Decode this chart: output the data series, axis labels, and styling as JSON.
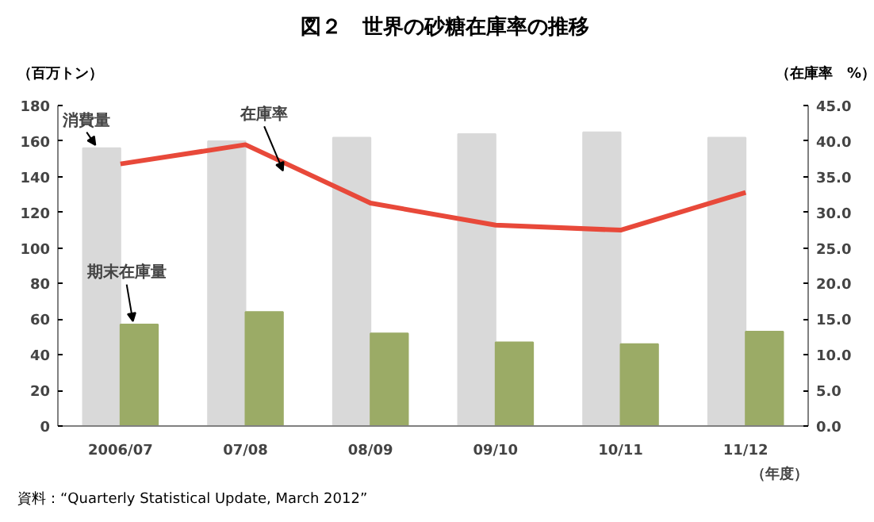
{
  "chart_data": {
    "type": "bar",
    "title": "図２　世界の砂糖在庫率の推移",
    "ylabel": "（百万トン）",
    "y2label": "（在庫率　%）",
    "xlabel": "（年度）",
    "annotations": [
      "資料：“Quarterly Statistical Update, March 2012”"
    ],
    "categories": [
      "2006/07",
      "07/08",
      "08/09",
      "09/10",
      "10/11",
      "11/12"
    ],
    "series": [
      {
        "name": "消費量",
        "color": "#d9d9d9",
        "values": [
          156,
          160,
          162,
          164,
          165,
          162
        ]
      },
      {
        "name": "期末在庫量",
        "color": "#9bab66",
        "values": [
          57,
          64,
          52,
          47,
          46,
          53
        ]
      },
      {
        "name": "在庫率",
        "type": "line",
        "axis": "y2",
        "color": "#e8493a",
        "values": [
          36.8,
          39.5,
          31.3,
          28.2,
          27.5,
          32.8
        ]
      }
    ],
    "ylim": [
      0,
      180
    ],
    "yticks": [
      0,
      20,
      40,
      60,
      80,
      100,
      120,
      140,
      160,
      180
    ],
    "y2lim": [
      0,
      45
    ],
    "y2ticks": [
      {
        "value": 0,
        "label": "0.0"
      },
      {
        "value": 5,
        "label": "5.0"
      },
      {
        "value": 10,
        "label": "10.0"
      },
      {
        "value": 15,
        "label": "15.0"
      },
      {
        "value": 20,
        "label": "20.0"
      },
      {
        "value": 25,
        "label": "25.0"
      },
      {
        "value": 30,
        "label": "30.0"
      },
      {
        "value": 35,
        "label": "35.0"
      },
      {
        "value": 40,
        "label": "40.0"
      },
      {
        "value": 45,
        "label": "45.0"
      }
    ],
    "grid": false
  }
}
